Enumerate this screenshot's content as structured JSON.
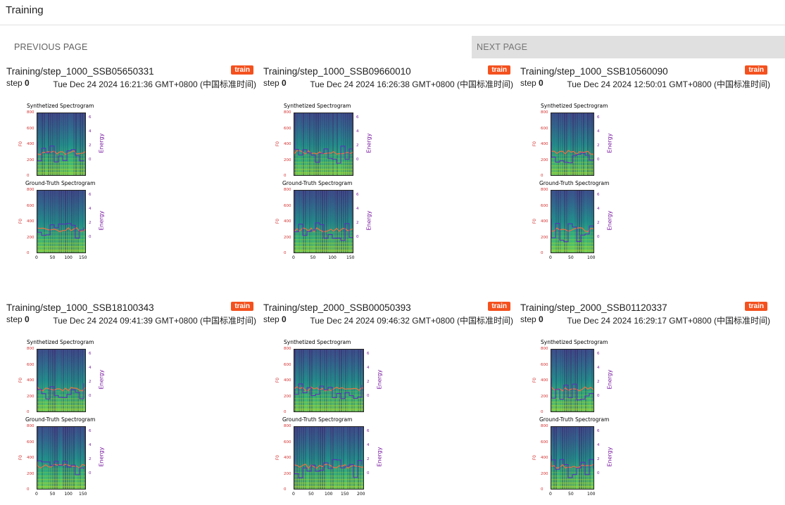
{
  "header": {
    "title": "Training"
  },
  "pager": {
    "previous_label": "PREVIOUS PAGE",
    "next_label": "NEXT PAGE"
  },
  "colors": {
    "train_tag": "#f4511e",
    "pitch": "#e8603c",
    "energy": "#7b1fa2",
    "spec_dark": "#440154",
    "spec_mid": "#21918c",
    "spec_light": "#5ec962"
  },
  "icons": [],
  "cards": [
    {
      "title": "Training/step_1000_SSB05650331",
      "tag": "train",
      "step_label": "step",
      "step": "0",
      "date": "Tue Dec 24 2024 16:21:36 GMT+0800 (中国标准时间)",
      "plot_top_title": "Synthetized Spectrogram",
      "plot_bottom_title": "Ground-Truth Spectrogram",
      "y_label": "F0",
      "e_label": "Energy",
      "x_ticks": [
        "0",
        "50",
        "100",
        "150"
      ]
    },
    {
      "title": "Training/step_1000_SSB09660010",
      "tag": "train",
      "step_label": "step",
      "step": "0",
      "date": "Tue Dec 24 2024 16:26:38 GMT+0800 (中国标准时间)",
      "plot_top_title": "Synthetized Spectrogram",
      "plot_bottom_title": "Ground-Truth Spectrogram",
      "y_label": "F0",
      "e_label": "Energy",
      "x_ticks": [
        "0",
        "50",
        "100",
        "150"
      ]
    },
    {
      "title": "Training/step_1000_SSB10560090",
      "tag": "train",
      "step_label": "step",
      "step": "0",
      "date": "Tue Dec 24 2024 12:50:01 GMT+0800 (中国标准时间)",
      "plot_top_title": "Synthetized Spectrogram",
      "plot_bottom_title": "Ground-Truth Spectrogram",
      "y_label": "F0",
      "e_label": "Energy",
      "x_ticks": [
        "0",
        "50",
        "100"
      ]
    },
    {
      "title": "Training/step_1000_SSB18100343",
      "tag": "train",
      "step_label": "step",
      "step": "0",
      "date": "Tue Dec 24 2024 09:41:39 GMT+0800 (中国标准时间)",
      "plot_top_title": "Synthetized Spectrogram",
      "plot_bottom_title": "Ground-Truth Spectrogram",
      "y_label": "F0",
      "e_label": "Energy",
      "x_ticks": [
        "0",
        "50",
        "100",
        "150"
      ]
    },
    {
      "title": "Training/step_2000_SSB00050393",
      "tag": "train",
      "step_label": "step",
      "step": "0",
      "date": "Tue Dec 24 2024 09:46:32 GMT+0800 (中国标准时间)",
      "plot_top_title": "Synthetized Spectrogram",
      "plot_bottom_title": "Ground-Truth Spectrogram",
      "y_label": "F0",
      "e_label": "Energy",
      "x_ticks": [
        "0",
        "50",
        "100",
        "150",
        "200"
      ]
    },
    {
      "title": "Training/step_2000_SSB01120337",
      "tag": "train",
      "step_label": "step",
      "step": "0",
      "date": "Tue Dec 24 2024 16:29:17 GMT+0800 (中国标准时间)",
      "plot_top_title": "Synthetized Spectrogram",
      "plot_bottom_title": "Ground-Truth Spectrogram",
      "y_label": "F0",
      "e_label": "Energy",
      "x_ticks": [
        "0",
        "50",
        "100"
      ]
    }
  ],
  "plot_axes": {
    "f0_ticks": [
      "800",
      "600",
      "400",
      "200",
      "0"
    ],
    "energy_ticks": [
      "6",
      "4",
      "2",
      "0"
    ]
  }
}
